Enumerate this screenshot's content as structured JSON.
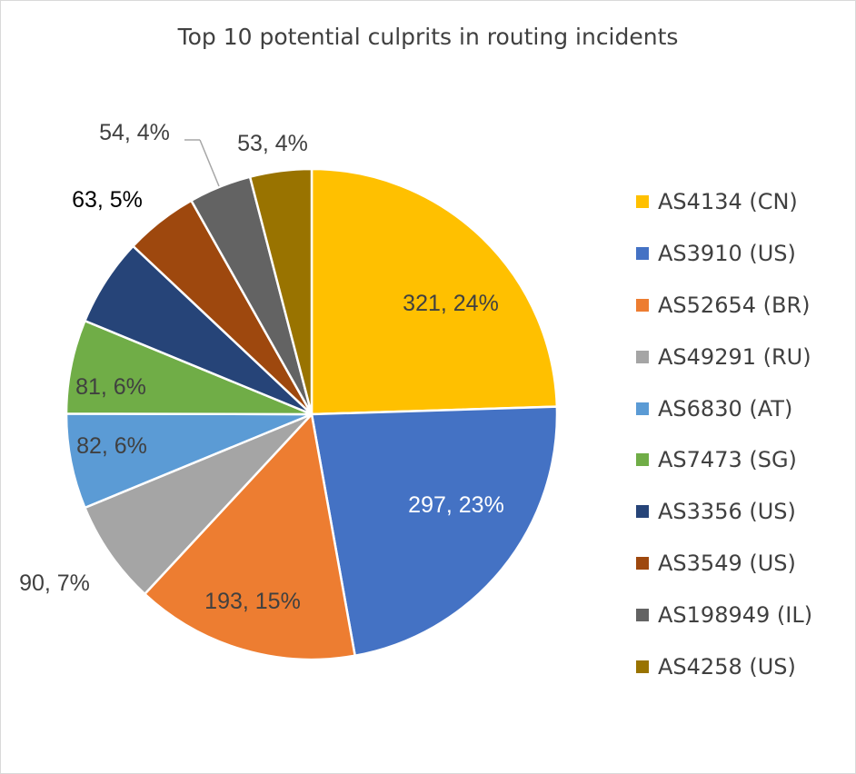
{
  "chart_data": {
    "type": "pie",
    "title": "Top 10 potential culprits in routing incidents",
    "legend_position": "right",
    "slices": [
      {
        "name": "AS4134 (CN)",
        "value": 321,
        "percent": "24%",
        "label": "321, 24%",
        "color": "#FFC000"
      },
      {
        "name": "AS3910 (US)",
        "value": 297,
        "percent": "23%",
        "label": "297, 23%",
        "color": "#4472C4"
      },
      {
        "name": "AS52654 (BR)",
        "value": 193,
        "percent": "15%",
        "label": "193, 15%",
        "color": "#ED7D31"
      },
      {
        "name": "AS49291 (RU)",
        "value": 90,
        "percent": "7%",
        "label": "90, 7%",
        "color": "#A5A5A5"
      },
      {
        "name": "AS6830 (AT)",
        "value": 82,
        "percent": "6%",
        "label": "82, 6%",
        "color": "#5B9BD5"
      },
      {
        "name": "AS7473 (SG)",
        "value": 81,
        "percent": "6%",
        "label": "81, 6%",
        "color": "#70AD47"
      },
      {
        "name": "AS3356 (US)",
        "value": 76,
        "color": "#264478"
      },
      {
        "name": "AS3549 (US)",
        "value": 63,
        "percent": "5%",
        "label": "63, 5%",
        "color": "#9E480E"
      },
      {
        "name": "AS198949 (IL)",
        "value": 54,
        "percent": "4%",
        "label": "54, 4%",
        "color": "#636363"
      },
      {
        "name": "AS4258 (US)",
        "value": 53,
        "percent": "4%",
        "label": "53, 4%",
        "color": "#997300"
      }
    ]
  }
}
